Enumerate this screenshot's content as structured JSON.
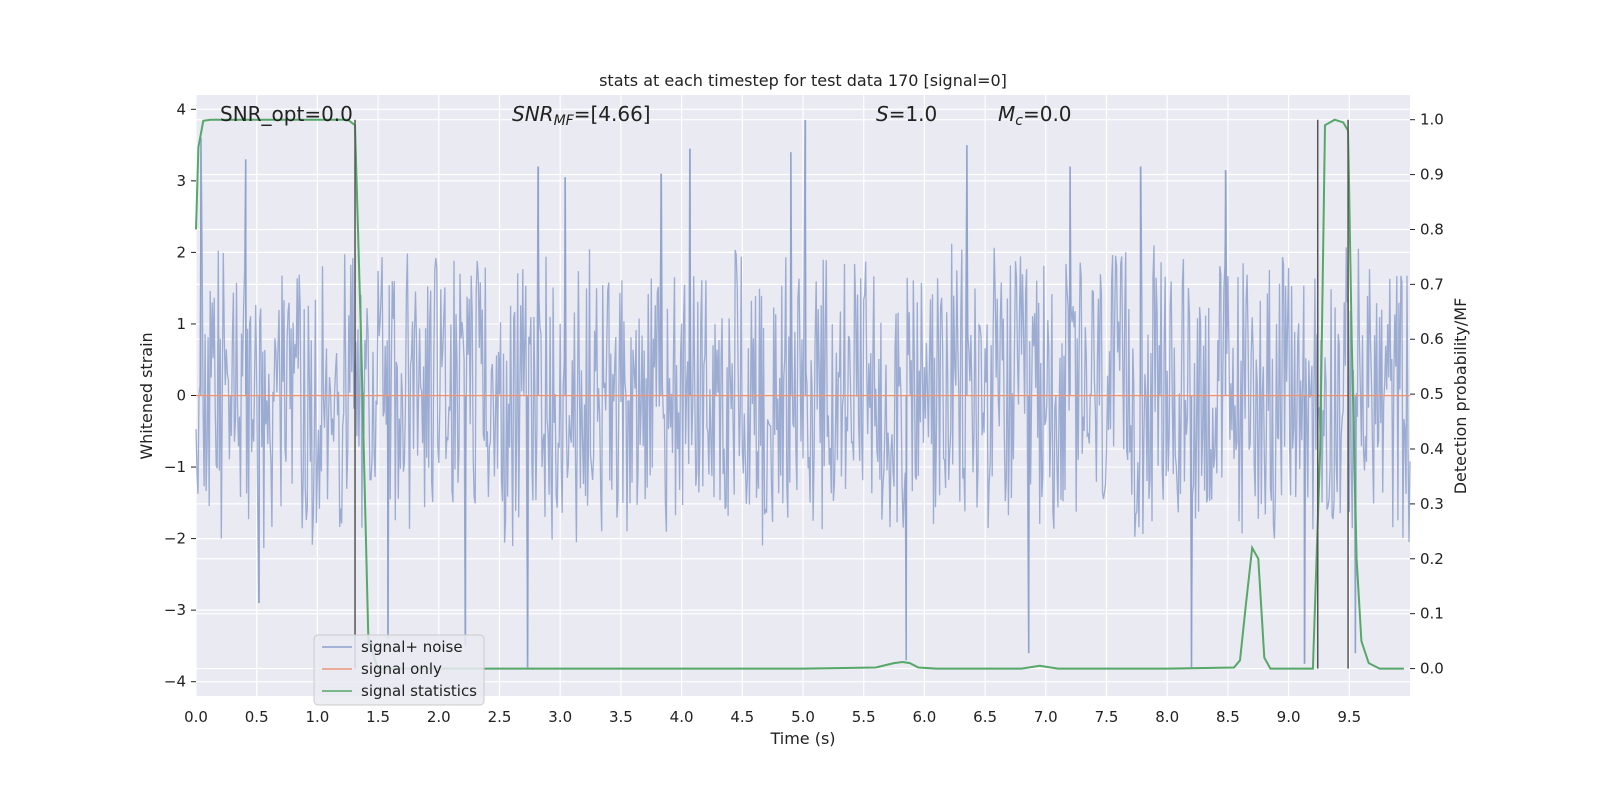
{
  "chart_data": {
    "type": "line",
    "title": "stats at each timestep for test data 170 [signal=0]",
    "xlabel": "Time (s)",
    "ylabel": "Whitened strain",
    "ylabel_right": "Detection probability/MF",
    "xlim": [
      0.0,
      10.0
    ],
    "ylim": [
      -4.2,
      4.2
    ],
    "ylim_right": [
      -0.05,
      1.045
    ],
    "x_ticks": [
      0.0,
      0.5,
      1.0,
      1.5,
      2.0,
      2.5,
      3.0,
      3.5,
      4.0,
      4.5,
      5.0,
      5.5,
      6.0,
      6.5,
      7.0,
      7.5,
      8.0,
      8.5,
      9.0,
      9.5
    ],
    "x_tick_labels": [
      "0.0",
      "0.5",
      "1.0",
      "1.5",
      "2.0",
      "2.5",
      "3.0",
      "3.5",
      "4.0",
      "4.5",
      "5.0",
      "5.5",
      "6.0",
      "6.5",
      "7.0",
      "7.5",
      "8.0",
      "8.5",
      "9.0",
      "9.5"
    ],
    "y_ticks": [
      -4,
      -3,
      -2,
      -1,
      0,
      1,
      2,
      3,
      4
    ],
    "y_tick_labels": [
      "−4",
      "−3",
      "−2",
      "−1",
      "0",
      "1",
      "2",
      "3",
      "4"
    ],
    "y_ticks_right": [
      0.0,
      0.1,
      0.2,
      0.3,
      0.4,
      0.5,
      0.6,
      0.7,
      0.8,
      0.9,
      1.0
    ],
    "y_tick_labels_right": [
      "0.0",
      "0.1",
      "0.2",
      "0.3",
      "0.4",
      "0.5",
      "0.6",
      "0.7",
      "0.8",
      "0.9",
      "1.0"
    ],
    "grid": true,
    "legend_position": "lower-left",
    "annotations": {
      "snr_opt": "SNR_opt=0.0",
      "snr_mf_var": "SNR",
      "snr_mf_sub": "MF",
      "snr_mf_val": "=[4.66]",
      "s_var": "S",
      "s_val": "=1.0",
      "mc_var": "M",
      "mc_sub": "c",
      "mc_val": "=0.0"
    },
    "series": [
      {
        "name": "signal+ noise",
        "axis": "left",
        "color": "#8da0cb",
        "noise_envelope": {
          "typical_abs_max": 2.2,
          "peak_abs_max": 3.85
        },
        "notable_peaks": [
          {
            "x": 0.04,
            "y": 3.6
          },
          {
            "x": 0.41,
            "y": 3.3
          },
          {
            "x": 0.52,
            "y": -2.9
          },
          {
            "x": 1.58,
            "y": -3.4
          },
          {
            "x": 2.22,
            "y": -3.5
          },
          {
            "x": 2.73,
            "y": -3.8
          },
          {
            "x": 2.82,
            "y": 3.2
          },
          {
            "x": 3.04,
            "y": 3.05
          },
          {
            "x": 3.83,
            "y": 3.1
          },
          {
            "x": 4.07,
            "y": 3.45
          },
          {
            "x": 4.9,
            "y": 3.4
          },
          {
            "x": 5.02,
            "y": 3.85
          },
          {
            "x": 5.85,
            "y": -3.7
          },
          {
            "x": 6.35,
            "y": 3.5
          },
          {
            "x": 6.86,
            "y": -3.6
          },
          {
            "x": 7.2,
            "y": 3.2
          },
          {
            "x": 7.78,
            "y": 3.2
          },
          {
            "x": 8.2,
            "y": -3.8
          },
          {
            "x": 8.48,
            "y": 3.15
          },
          {
            "x": 9.13,
            "y": -3.75
          },
          {
            "x": 9.55,
            "y": -3.6
          }
        ]
      },
      {
        "name": "signal only",
        "axis": "left",
        "color": "#e9967a",
        "x": [
          0.0,
          10.0
        ],
        "y": [
          0.0,
          0.0
        ]
      },
      {
        "name": "signal statistics",
        "axis": "right",
        "color": "#55a868",
        "x": [
          0.0,
          0.02,
          0.06,
          0.12,
          0.5,
          1.0,
          1.25,
          1.31,
          1.36,
          1.42,
          1.5,
          2.0,
          3.0,
          4.0,
          5.0,
          5.6,
          5.75,
          5.82,
          5.88,
          5.95,
          6.1,
          6.8,
          6.95,
          7.1,
          8.0,
          8.55,
          8.6,
          8.65,
          8.7,
          8.75,
          8.8,
          8.85,
          8.92,
          9.0,
          9.2,
          9.26,
          9.3,
          9.38,
          9.45,
          9.49,
          9.52,
          9.56,
          9.6,
          9.66,
          9.75,
          9.95
        ],
        "y": [
          0.8,
          0.95,
          0.998,
          1.0,
          1.0,
          1.0,
          1.0,
          0.99,
          0.6,
          0.05,
          0.0,
          0.0,
          0.0,
          0.0,
          0.0,
          0.002,
          0.01,
          0.012,
          0.01,
          0.002,
          0.0,
          0.0,
          0.005,
          0.0,
          0.0,
          0.002,
          0.015,
          0.12,
          0.22,
          0.2,
          0.02,
          0.0,
          0.0,
          0.0,
          0.0,
          0.4,
          0.99,
          1.0,
          0.995,
          0.98,
          0.6,
          0.2,
          0.05,
          0.01,
          0.0,
          0.0
        ]
      },
      {
        "name": "",
        "axis": "right",
        "color": "#555555",
        "style": "vertical-markers",
        "x": [
          1.31,
          9.24,
          9.49
        ]
      }
    ]
  }
}
